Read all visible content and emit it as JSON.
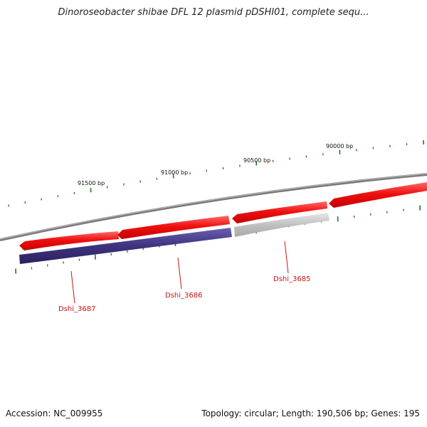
{
  "title": "Dinoroseobacter shibae DFL 12 plasmid pDSHI01, complete sequ...",
  "footer": {
    "accession": "Accession: NC_009955",
    "summary": "Topology: circular; Length: 190,506 bp; Genes: 195"
  },
  "colors": {
    "backbone": "#8a8a8a",
    "forward_cds": "#e8141a",
    "reverse_cds": "#4a3f8c",
    "pseudo_gray": "#c4c4c4",
    "tick": "#1a7a1a",
    "label": "#cc1111"
  },
  "scale": {
    "tick_labels": [
      "91500 bp",
      "91000 bp",
      "90500 bp",
      "90000 bp"
    ]
  },
  "genes": {
    "labels": [
      "Dshi_3687",
      "Dshi_3686",
      "Dshi_3685"
    ]
  }
}
